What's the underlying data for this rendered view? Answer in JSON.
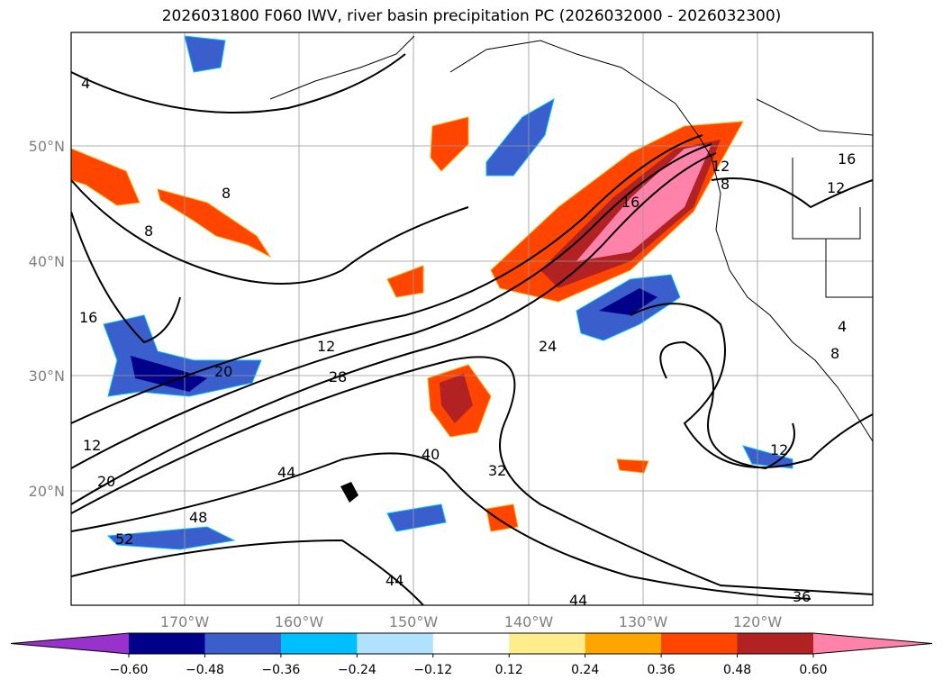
{
  "title": "2026031800 F060 IWV, river basin precipitation PC (2026032000 - 2026032300)",
  "map": {
    "lon_labels": [
      "170°W",
      "160°W",
      "150°W",
      "140°W",
      "130°W",
      "120°W"
    ],
    "lat_labels": [
      "50°N",
      "40°N",
      "30°N",
      "20°N"
    ],
    "extent": {
      "lon": [
        -180,
        -110
      ],
      "lat": [
        10,
        60
      ]
    },
    "iwv_contour_labels": [
      "4",
      "8",
      "8",
      "16",
      "12",
      "28",
      "20",
      "24",
      "16",
      "40",
      "32",
      "44",
      "48",
      "52",
      "20",
      "12",
      "12",
      "4",
      "8",
      "16",
      "12",
      "44",
      "44",
      "36",
      "8",
      "12"
    ]
  },
  "colorbar": {
    "colors": [
      "#9932CC",
      "#00008B",
      "#3A5FCD",
      "#00BFFF",
      "#B0E2FF",
      "#FFFFFF",
      "#FFEC8B",
      "#FFA500",
      "#FF4500",
      "#B22222",
      "#FF82AB"
    ],
    "tick_labels": [
      "−0.60",
      "−0.48",
      "−0.36",
      "−0.24",
      "−0.12",
      "0.12",
      "0.24",
      "0.36",
      "0.48",
      "0.60"
    ]
  }
}
